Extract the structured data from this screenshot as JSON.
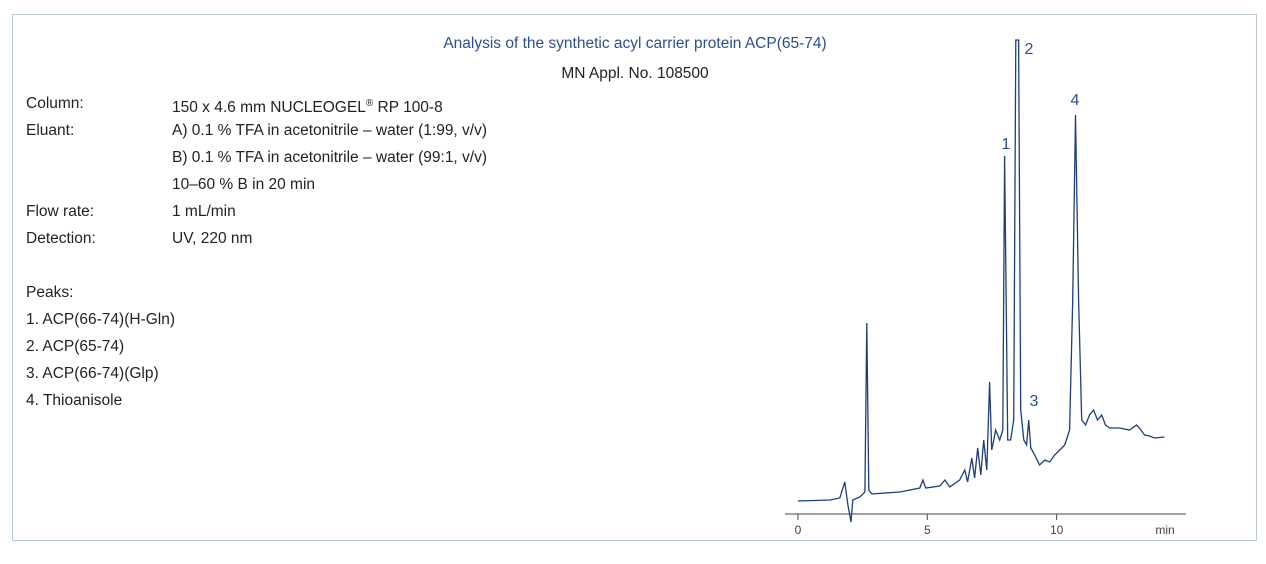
{
  "header": {
    "title": "Analysis of the synthetic acyl carrier protein ACP(65-74)",
    "subtitle": "MN Appl. No. 108500"
  },
  "conditions": {
    "column": {
      "label": "Column:",
      "text": "150 x 4.6 mm NUCLEOGEL",
      "sup": "®",
      "text_after": " RP 100-8"
    },
    "eluant": {
      "label": "Eluant:",
      "lines": [
        "A) 0.1 % TFA in acetonitrile – water (1:99, v/v)",
        "B) 0.1 % TFA in acetonitrile – water (99:1, v/v)",
        "10–60 % B in 20 min"
      ]
    },
    "flow": {
      "label": "Flow rate:",
      "text": "1 mL/min"
    },
    "detection": {
      "label": "Detection:",
      "text": "UV, 220 nm"
    }
  },
  "peaks": {
    "heading": "Peaks:",
    "items": [
      "1. ACP(66-74)(H-Gln)",
      "2. ACP(65-74)",
      "3. ACP(66-74)(Glp)",
      "4. Thioanisole"
    ]
  },
  "chart_data": {
    "type": "line",
    "color": "#1f3f7a",
    "x_label": "min",
    "x": [
      0,
      1.24,
      1.62,
      1.81,
      1.93,
      2.05,
      2.12,
      2.39,
      2.59,
      2.66,
      2.74,
      2.86,
      3.94,
      4.71,
      4.83,
      4.94,
      5.48,
      5.68,
      5.87,
      6.25,
      6.45,
      6.56,
      6.72,
      6.83,
      6.95,
      7.07,
      7.18,
      7.3,
      7.41,
      7.49,
      7.57,
      7.64,
      7.72,
      7.8,
      7.92,
      7.99,
      8.11,
      8.22,
      8.34,
      8.42,
      8.53,
      8.61,
      8.73,
      8.84,
      8.92,
      9.0,
      9.15,
      9.34,
      9.54,
      9.73,
      9.92,
      10.12,
      10.31,
      10.5,
      10.62,
      10.73,
      10.85,
      10.97,
      11.12,
      11.27,
      11.43,
      11.58,
      11.74,
      11.89,
      12.05,
      12.43,
      12.82,
      13.09,
      13.2,
      13.4,
      13.59,
      13.78,
      14.17
    ],
    "values": [
      13,
      14,
      16,
      32,
      9,
      -8,
      14,
      17,
      22,
      191,
      24,
      20,
      22,
      26,
      34,
      26,
      28,
      34,
      27,
      34,
      44,
      32,
      56,
      36,
      66,
      39,
      74,
      44,
      132,
      64,
      74,
      84,
      79,
      74,
      84,
      358,
      74,
      74,
      94,
      474,
      474,
      104,
      74,
      69,
      94,
      66,
      59,
      49,
      54,
      52,
      59,
      64,
      69,
      84,
      214,
      399,
      214,
      94,
      89,
      99,
      104,
      94,
      99,
      89,
      86,
      86,
      84,
      89,
      86,
      79,
      78,
      76,
      77
    ],
    "xlim": [
      -0.5,
      15
    ],
    "xticks": [
      0,
      5,
      10
    ],
    "ylim": [
      0,
      474
    ],
    "peak_labels": [
      "1",
      "2",
      "3",
      "4"
    ]
  }
}
